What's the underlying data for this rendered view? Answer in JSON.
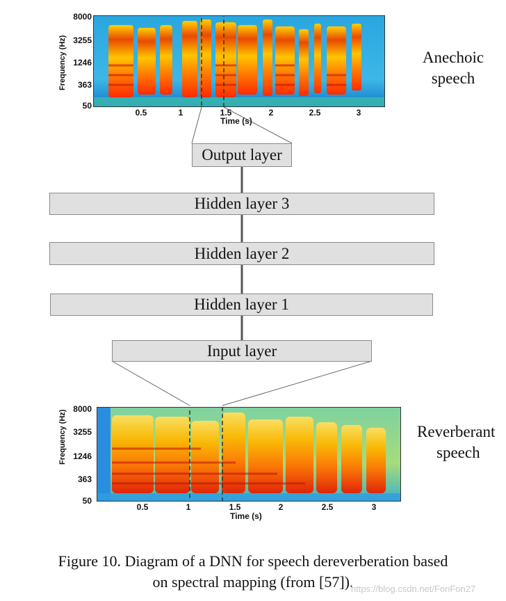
{
  "top_spectrogram": {
    "y_axis_label": "Frequency (Hz)",
    "y_ticks": [
      "8000",
      "3255",
      "1246",
      "363",
      "50"
    ],
    "x_ticks": [
      "0.5",
      "1",
      "1.5",
      "2",
      "2.5",
      "3"
    ],
    "x_axis_label": "Time (s)",
    "side_label_line1": "Anechoic",
    "side_label_line2": "speech"
  },
  "bottom_spectrogram": {
    "y_axis_label": "Frequency (Hz)",
    "y_ticks": [
      "8000",
      "3255",
      "1246",
      "363",
      "50"
    ],
    "x_ticks": [
      "0.5",
      "1",
      "1.5",
      "2",
      "2.5",
      "3"
    ],
    "x_axis_label": "Time (s)",
    "side_label_line1": "Reverberant",
    "side_label_line2": "speech"
  },
  "layers": {
    "output": "Output layer",
    "hidden3": "Hidden layer 3",
    "hidden2": "Hidden layer 2",
    "hidden1": "Hidden layer 1",
    "input": "Input layer"
  },
  "caption": {
    "line1": "Figure 10. Diagram of a DNN for speech dereverberation based",
    "line2": "on spectral mapping (from [57])."
  },
  "watermark": "https://blog.csdn.net/FonFon27",
  "colors": {
    "layer_fill": "#e0e0e0",
    "connector": "#555555",
    "spec_background": "#1a9fd6"
  }
}
